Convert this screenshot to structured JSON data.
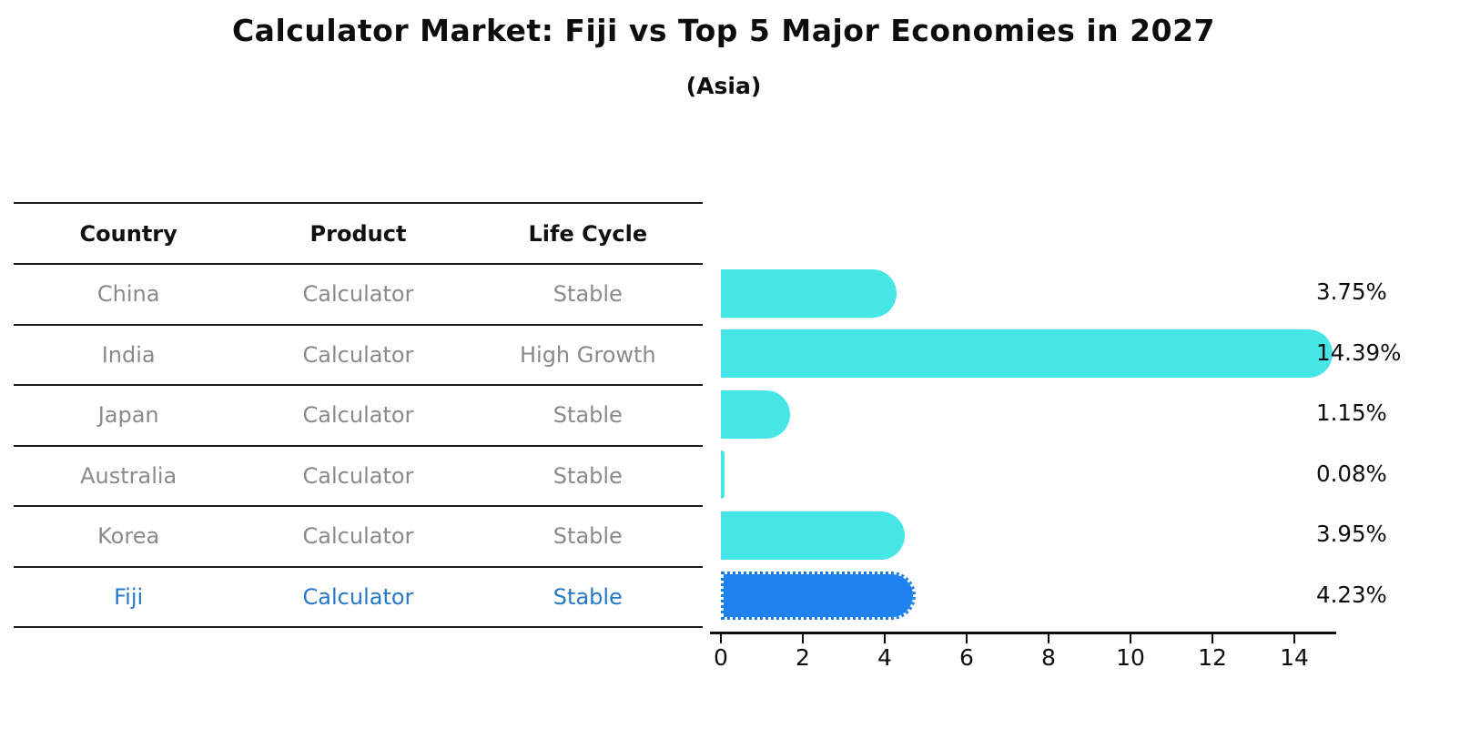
{
  "title": "Calculator Market: Fiji vs Top 5 Major Economies in 2027",
  "subtitle": "(Asia)",
  "table": {
    "headers": [
      "Country",
      "Product",
      "Life Cycle"
    ],
    "rows": [
      {
        "country": "China",
        "product": "Calculator",
        "life_cycle": "Stable",
        "highlight": false
      },
      {
        "country": "India",
        "product": "Calculator",
        "life_cycle": "High Growth",
        "highlight": false
      },
      {
        "country": "Japan",
        "product": "Calculator",
        "life_cycle": "Stable",
        "highlight": false
      },
      {
        "country": "Australia",
        "product": "Calculator",
        "life_cycle": "Stable",
        "highlight": false
      },
      {
        "country": "Korea",
        "product": "Calculator",
        "life_cycle": "Stable",
        "highlight": false
      },
      {
        "country": "Fiji",
        "product": "Calculator",
        "life_cycle": "Stable",
        "highlight": true
      }
    ]
  },
  "chart_data": {
    "type": "bar",
    "orientation": "horizontal",
    "title": "Calculator Market: Fiji vs Top 5 Major Economies in 2027",
    "subtitle": "(Asia)",
    "categories": [
      "China",
      "India",
      "Japan",
      "Australia",
      "Korea",
      "Fiji"
    ],
    "values": [
      3.75,
      14.39,
      1.15,
      0.08,
      3.95,
      4.23
    ],
    "value_labels": [
      "3.75%",
      "14.39%",
      "1.15%",
      "0.08%",
      "3.95%",
      "4.23%"
    ],
    "x_ticks": [
      0,
      2,
      4,
      6,
      8,
      10,
      12,
      14
    ],
    "xlim": [
      0,
      15.1
    ],
    "highlight_index": 5,
    "grid": false,
    "legend": "none"
  },
  "colors": {
    "bar_default": "#46E6E6",
    "bar_highlight": "#1E82F0",
    "highlight_text": "#2878C8",
    "text_dark": "#0d0d0d",
    "text_gray": "#8a8a8a"
  }
}
